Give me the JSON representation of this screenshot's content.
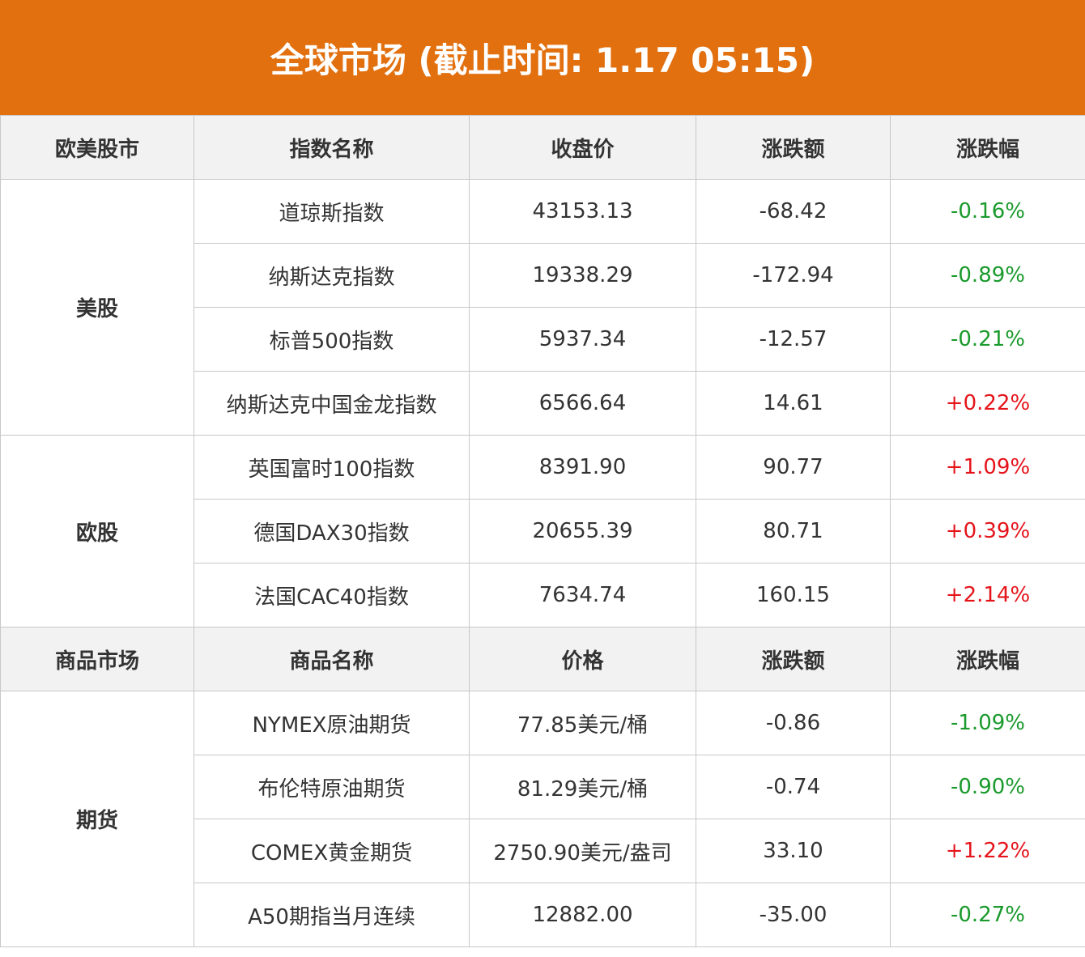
{
  "title": "全球市场 (截止时间: 1.17 05:15)",
  "up_color": "#e5141b",
  "down_color": "#1a9a2c",
  "sections": [
    {
      "header": [
        "欧美股市",
        "指数名称",
        "收盘价",
        "涨跌额",
        "涨跌幅"
      ],
      "groups": [
        {
          "name": "美股",
          "rows": [
            [
              "道琼斯指数",
              "43153.13",
              "-68.42",
              "-0.16%"
            ],
            [
              "纳斯达克指数",
              "19338.29",
              "-172.94",
              "-0.89%"
            ],
            [
              "标普500指数",
              "5937.34",
              "-12.57",
              "-0.21%"
            ],
            [
              "纳斯达克中国金龙指数",
              "6566.64",
              "14.61",
              "+0.22%"
            ]
          ]
        },
        {
          "name": "欧股",
          "rows": [
            [
              "英国富时100指数",
              "8391.90",
              "90.77",
              "+1.09%"
            ],
            [
              "德国DAX30指数",
              "20655.39",
              "80.71",
              "+0.39%"
            ],
            [
              "法国CAC40指数",
              "7634.74",
              "160.15",
              "+2.14%"
            ]
          ]
        }
      ]
    },
    {
      "header": [
        "商品市场",
        "商品名称",
        "价格",
        "涨跌额",
        "涨跌幅"
      ],
      "groups": [
        {
          "name": "期货",
          "rows": [
            [
              "NYMEX原油期货",
              "77.85美元/桶",
              "-0.86",
              "-1.09%"
            ],
            [
              "布伦特原油期货",
              "81.29美元/桶",
              "-0.74",
              "-0.90%"
            ],
            [
              "COMEX黄金期货",
              "2750.90美元/盎司",
              "33.10",
              "+1.22%"
            ],
            [
              "A50期指当月连续",
              "12882.00",
              "-35.00",
              "-0.27%"
            ]
          ]
        }
      ]
    }
  ]
}
